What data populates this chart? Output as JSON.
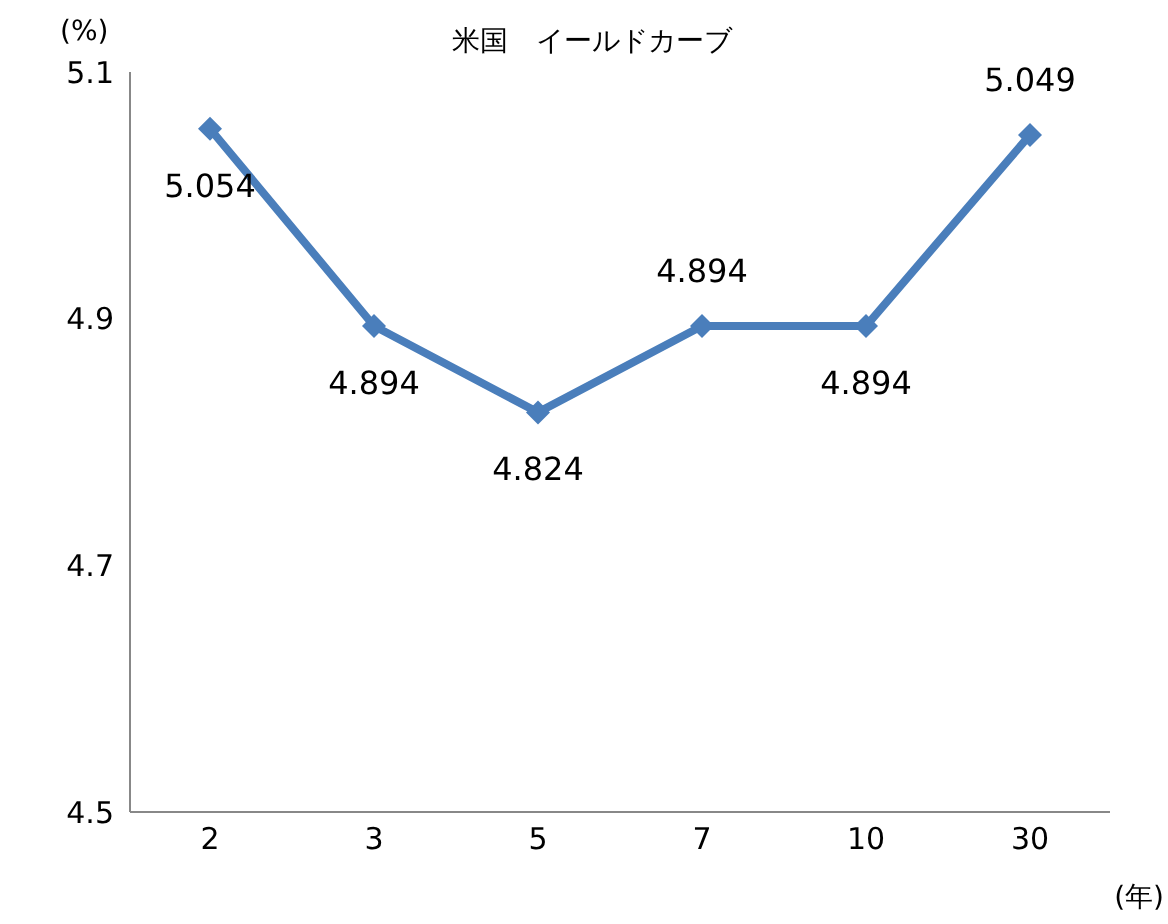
{
  "chart_data": {
    "type": "line",
    "title": "米国　イールドカーブ",
    "ylabel": "(%)",
    "xlabel": "(年)",
    "categories": [
      "2",
      "3",
      "5",
      "7",
      "10",
      "30"
    ],
    "series": [
      {
        "color": "#4a7ebb",
        "values": [
          5.054,
          4.894,
          4.824,
          4.894,
          4.894,
          5.049
        ]
      }
    ],
    "ylim": [
      4.5,
      5.1
    ],
    "yticks": [
      4.5,
      4.7,
      4.9,
      5.1
    ],
    "grid": false,
    "marker": "diamond",
    "line_style": "solid",
    "data_labels": true
  }
}
